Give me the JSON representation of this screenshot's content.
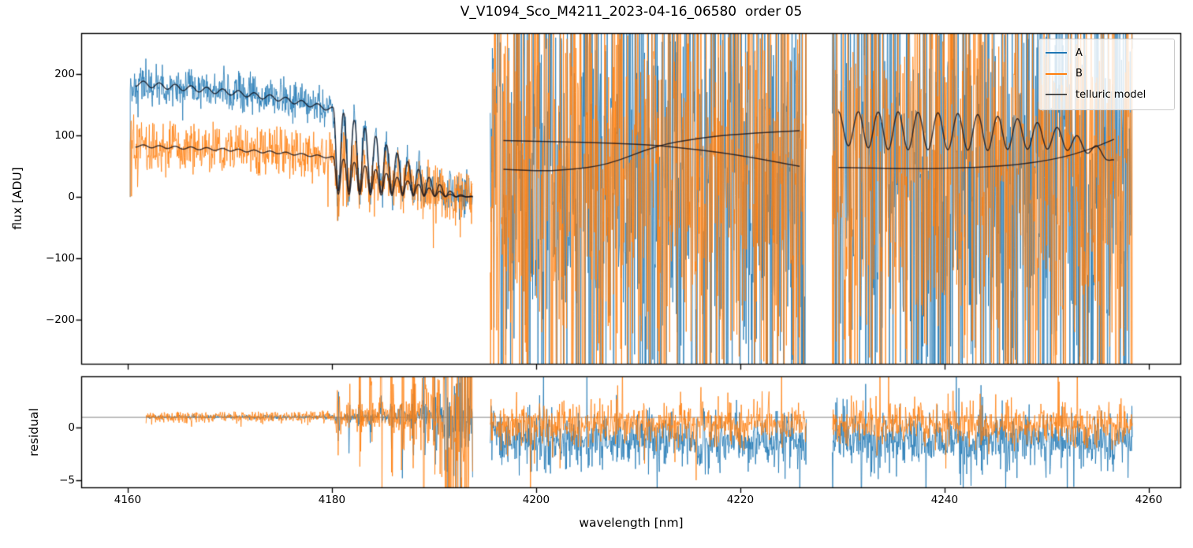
{
  "figure": {
    "background": "#ffffff",
    "text_color": "#000000",
    "spine_color": "#000000"
  },
  "chart_data": {
    "type": "line",
    "title": "V_V1094_Sco_M4211_2023-04-16_06580  order 05",
    "xlabel": "wavelength [nm]",
    "xlim": [
      4155.45,
      4263.17
    ],
    "xticks": [
      4160,
      4180,
      4200,
      4220,
      4240,
      4260
    ],
    "grid": false,
    "legend_position": "upper right",
    "noise_seed": 42,
    "series": [
      {
        "name": "A",
        "color": "#1f77b4"
      },
      {
        "name": "B",
        "color": "#ff7f0e"
      },
      {
        "name": "telluric model",
        "color": "#4d4d4d"
      }
    ],
    "model_line_rgba": "rgba(10,10,20,0.75)",
    "panels": [
      {
        "name": "flux",
        "ylabel": "flux [ADU]",
        "ylim": [
          -273,
          267
        ],
        "yticks": [
          200,
          100,
          0,
          -100,
          -200
        ]
      },
      {
        "name": "residual",
        "ylabel": "residual",
        "ylim": [
          -5.71,
          4.81
        ],
        "yticks": [
          0,
          -5
        ],
        "reference_line": 1,
        "reference_color": "#808080"
      }
    ],
    "segments": [
      {
        "wl_range": [
          4160.25,
          4193.8
        ],
        "flux": {
          "model_envelope_A": [
            [
              4160.3,
              191
            ],
            [
              4163,
              186
            ],
            [
              4167,
              180
            ],
            [
              4171,
              173
            ],
            [
              4175,
              164
            ],
            [
              4178,
              154
            ],
            [
              4180,
              147
            ],
            [
              4181.5,
              133
            ],
            [
              4183,
              115
            ],
            [
              4184.5,
              96
            ],
            [
              4186,
              76
            ],
            [
              4187.5,
              57
            ],
            [
              4189,
              38
            ],
            [
              4190.2,
              24
            ],
            [
              4191.2,
              13
            ],
            [
              4192,
              6
            ],
            [
              4193,
              2
            ],
            [
              4193.8,
              1
            ]
          ],
          "band_oscillation": {
            "start": 4180.1,
            "period_nm": 1.05,
            "depth": 0.93,
            "sharpness": 1.25
          },
          "pre_band_ripple": {
            "period_nm": 1.55,
            "depth": 0.05
          },
          "B_scale": 0.45,
          "noise_sigma_A": 16,
          "noise_sigma_B": 22,
          "first_sample_zero": true
        },
        "residual": {
          "wl_start": 4161.8,
          "center": 1,
          "sigma_numerator_A": 16,
          "sigma_numerator_B": 22,
          "model_floor_A": 4,
          "model_floor_B": 2.2
        }
      },
      {
        "wl_range": [
          4195.5,
          4226.5
        ],
        "flux": {
          "noise_mean_A": 30,
          "noise_sigma_A": 250,
          "noise_mean_B": 30,
          "noise_sigma_B": 215,
          "model_curves": [
            [
              [
                4196.8,
                92
              ],
              [
                4202,
                90
              ],
              [
                4207,
                88
              ],
              [
                4211.8,
                84
              ],
              [
                4216,
                77
              ],
              [
                4220,
                68
              ],
              [
                4225.8,
                50
              ]
            ],
            [
              [
                4196.8,
                45
              ],
              [
                4200,
                42
              ],
              [
                4203,
                44
              ],
              [
                4207,
                52
              ],
              [
                4211.8,
                84
              ],
              [
                4216,
                96
              ],
              [
                4220,
                103
              ],
              [
                4225.8,
                108
              ]
            ]
          ]
        },
        "residual": {
          "mean_A": -1.3,
          "sigma_A": 1.3,
          "mean_B": 0.35,
          "sigma_B": 0.95
        }
      },
      {
        "wl_range": [
          4229.0,
          4258.4
        ],
        "flux": {
          "noise_mean_A": 30,
          "noise_sigma_A": 250,
          "noise_mean_B": 30,
          "noise_sigma_B": 215,
          "model_curves": [
            [
              [
                4229.6,
                48
              ],
              [
                4236,
                46
              ],
              [
                4242,
                47
              ],
              [
                4247,
                52
              ],
              [
                4251,
                62
              ],
              [
                4254,
                76
              ],
              [
                4256.6,
                94
              ]
            ]
          ],
          "oscillating_model": {
            "mean_points": [
              [
                4229.6,
                112
              ],
              [
                4234,
                108
              ],
              [
                4240,
                107
              ],
              [
                4247,
                103
              ],
              [
                4251,
                96
              ],
              [
                4254,
                82
              ],
              [
                4256,
                66
              ],
              [
                4256.6,
                58
              ]
            ],
            "amp_points": [
              [
                4229.6,
                27
              ],
              [
                4235,
                31
              ],
              [
                4244,
                29
              ],
              [
                4249,
                22
              ],
              [
                4253,
                13
              ],
              [
                4256,
                6
              ],
              [
                4256.6,
                4
              ]
            ],
            "period_nm": 1.95
          }
        },
        "residual": {
          "mean_A": -1.3,
          "sigma_A": 1.3,
          "mean_B": 0.35,
          "sigma_B": 0.95
        }
      }
    ]
  }
}
